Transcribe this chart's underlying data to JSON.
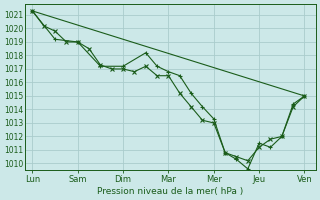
{
  "xlabel": "Pression niveau de la mer( hPa )",
  "xtick_labels": [
    "Lun",
    "Sam",
    "Dim",
    "Mar",
    "Mer",
    "Jeu",
    "Ven"
  ],
  "xtick_positions": [
    0,
    24,
    48,
    72,
    96,
    120,
    144
  ],
  "ylim": [
    1009.5,
    1021.8
  ],
  "yticks": [
    1010,
    1011,
    1012,
    1013,
    1014,
    1015,
    1016,
    1017,
    1018,
    1019,
    1020,
    1021
  ],
  "bg_color": "#cce8e8",
  "grid_color": "#aacccc",
  "line_color": "#1a5c1a",
  "xlim": [
    -4,
    150
  ],
  "series1_x": [
    0,
    6,
    12,
    18,
    24,
    30,
    36,
    42,
    48,
    54,
    60,
    66,
    72,
    78,
    84,
    90,
    96,
    102,
    108,
    114,
    120,
    126,
    132,
    138,
    144
  ],
  "series1_y": [
    1021.3,
    1020.2,
    1019.8,
    1019.0,
    1019.0,
    1018.5,
    1017.3,
    1017.0,
    1017.0,
    1016.8,
    1017.2,
    1016.5,
    1016.5,
    1015.2,
    1014.2,
    1013.2,
    1013.0,
    1010.8,
    1010.5,
    1010.2,
    1011.2,
    1011.8,
    1012.0,
    1014.2,
    1015.0
  ],
  "series2_x": [
    0,
    12,
    24,
    36,
    48,
    60,
    66,
    72,
    78,
    84,
    90,
    96,
    102,
    108,
    114,
    120,
    126,
    132,
    138,
    144
  ],
  "series2_y": [
    1021.3,
    1019.2,
    1019.0,
    1017.2,
    1017.2,
    1018.2,
    1017.2,
    1016.8,
    1016.5,
    1015.2,
    1014.2,
    1013.3,
    1010.8,
    1010.3,
    1009.6,
    1011.5,
    1011.2,
    1012.0,
    1014.4,
    1015.0
  ],
  "trend_x": [
    0,
    144
  ],
  "trend_y": [
    1021.3,
    1015.0
  ]
}
